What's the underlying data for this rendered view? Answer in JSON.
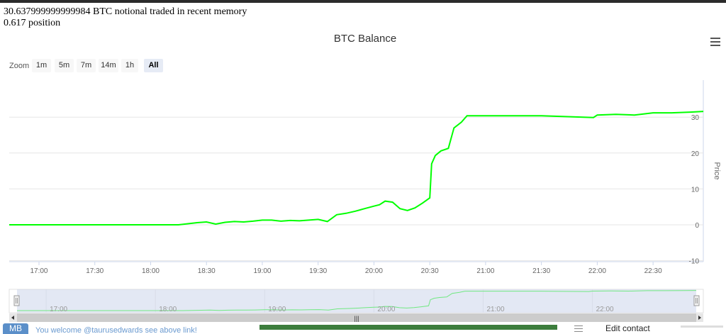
{
  "header": {
    "line1": "30.637999999999984 BTC notional traded in recent memory",
    "line2": "0.617 position"
  },
  "zoom": {
    "label": "Zoom",
    "buttons": [
      "1m",
      "5m",
      "7m",
      "14m",
      "1h",
      "All"
    ],
    "active": "All"
  },
  "navigator": {
    "ticks": [
      "17:00",
      "18:00",
      "19:00",
      "20:00",
      "21:00",
      "22:00"
    ],
    "scroll_grip": "|||"
  },
  "footer": {
    "avatar": "MB",
    "message": "You welcome @taurusedwards see above link!",
    "edit_contact": "Edit contact"
  },
  "colors": {
    "series": "#00ff00",
    "navigator_mask": "#ccd6eb",
    "grid": "#e6e6e6"
  },
  "chart_data": {
    "type": "line",
    "title": "BTC Balance",
    "ylabel": "Price",
    "xlabel": "",
    "ylim": [
      -12,
      40
    ],
    "y_ticks": [
      -10,
      0,
      10,
      20,
      30
    ],
    "x_ticks": [
      "17:00",
      "17:30",
      "18:00",
      "18:30",
      "19:00",
      "19:30",
      "20:00",
      "20:30",
      "21:00",
      "21:30",
      "22:00",
      "22:30"
    ],
    "grid": true,
    "legend": "none",
    "series": [
      {
        "x": [
          "16:44",
          "18:00",
          "18:15",
          "18:20",
          "18:25",
          "18:30",
          "18:35",
          "18:40",
          "18:45",
          "18:50",
          "18:55",
          "19:00",
          "19:05",
          "19:10",
          "19:15",
          "19:20",
          "19:25",
          "19:30",
          "19:35",
          "19:40",
          "19:45",
          "19:50",
          "19:55",
          "20:00",
          "20:03",
          "20:06",
          "20:10",
          "20:14",
          "20:18",
          "20:22",
          "20:26",
          "20:30",
          "20:31",
          "20:33",
          "20:36",
          "20:40",
          "20:43",
          "20:47",
          "20:50",
          "20:55",
          "21:00",
          "21:30",
          "21:58",
          "22:00",
          "22:10",
          "22:20",
          "22:30",
          "22:40",
          "22:50",
          "22:57"
        ],
        "y": [
          0,
          0,
          0,
          0.3,
          0.6,
          0.8,
          0.2,
          0.7,
          0.9,
          0.8,
          1.0,
          1.3,
          1.3,
          1.0,
          1.2,
          1.1,
          1.3,
          1.5,
          0.9,
          2.8,
          3.2,
          3.8,
          4.5,
          5.2,
          5.6,
          6.6,
          6.3,
          4.5,
          4.0,
          4.7,
          6.0,
          7.5,
          17.0,
          19.3,
          20.6,
          21.3,
          27.0,
          28.6,
          30.4,
          30.4,
          30.4,
          30.4,
          29.9,
          30.6,
          30.8,
          30.6,
          31.2,
          31.2,
          31.4,
          31.6
        ]
      }
    ]
  }
}
